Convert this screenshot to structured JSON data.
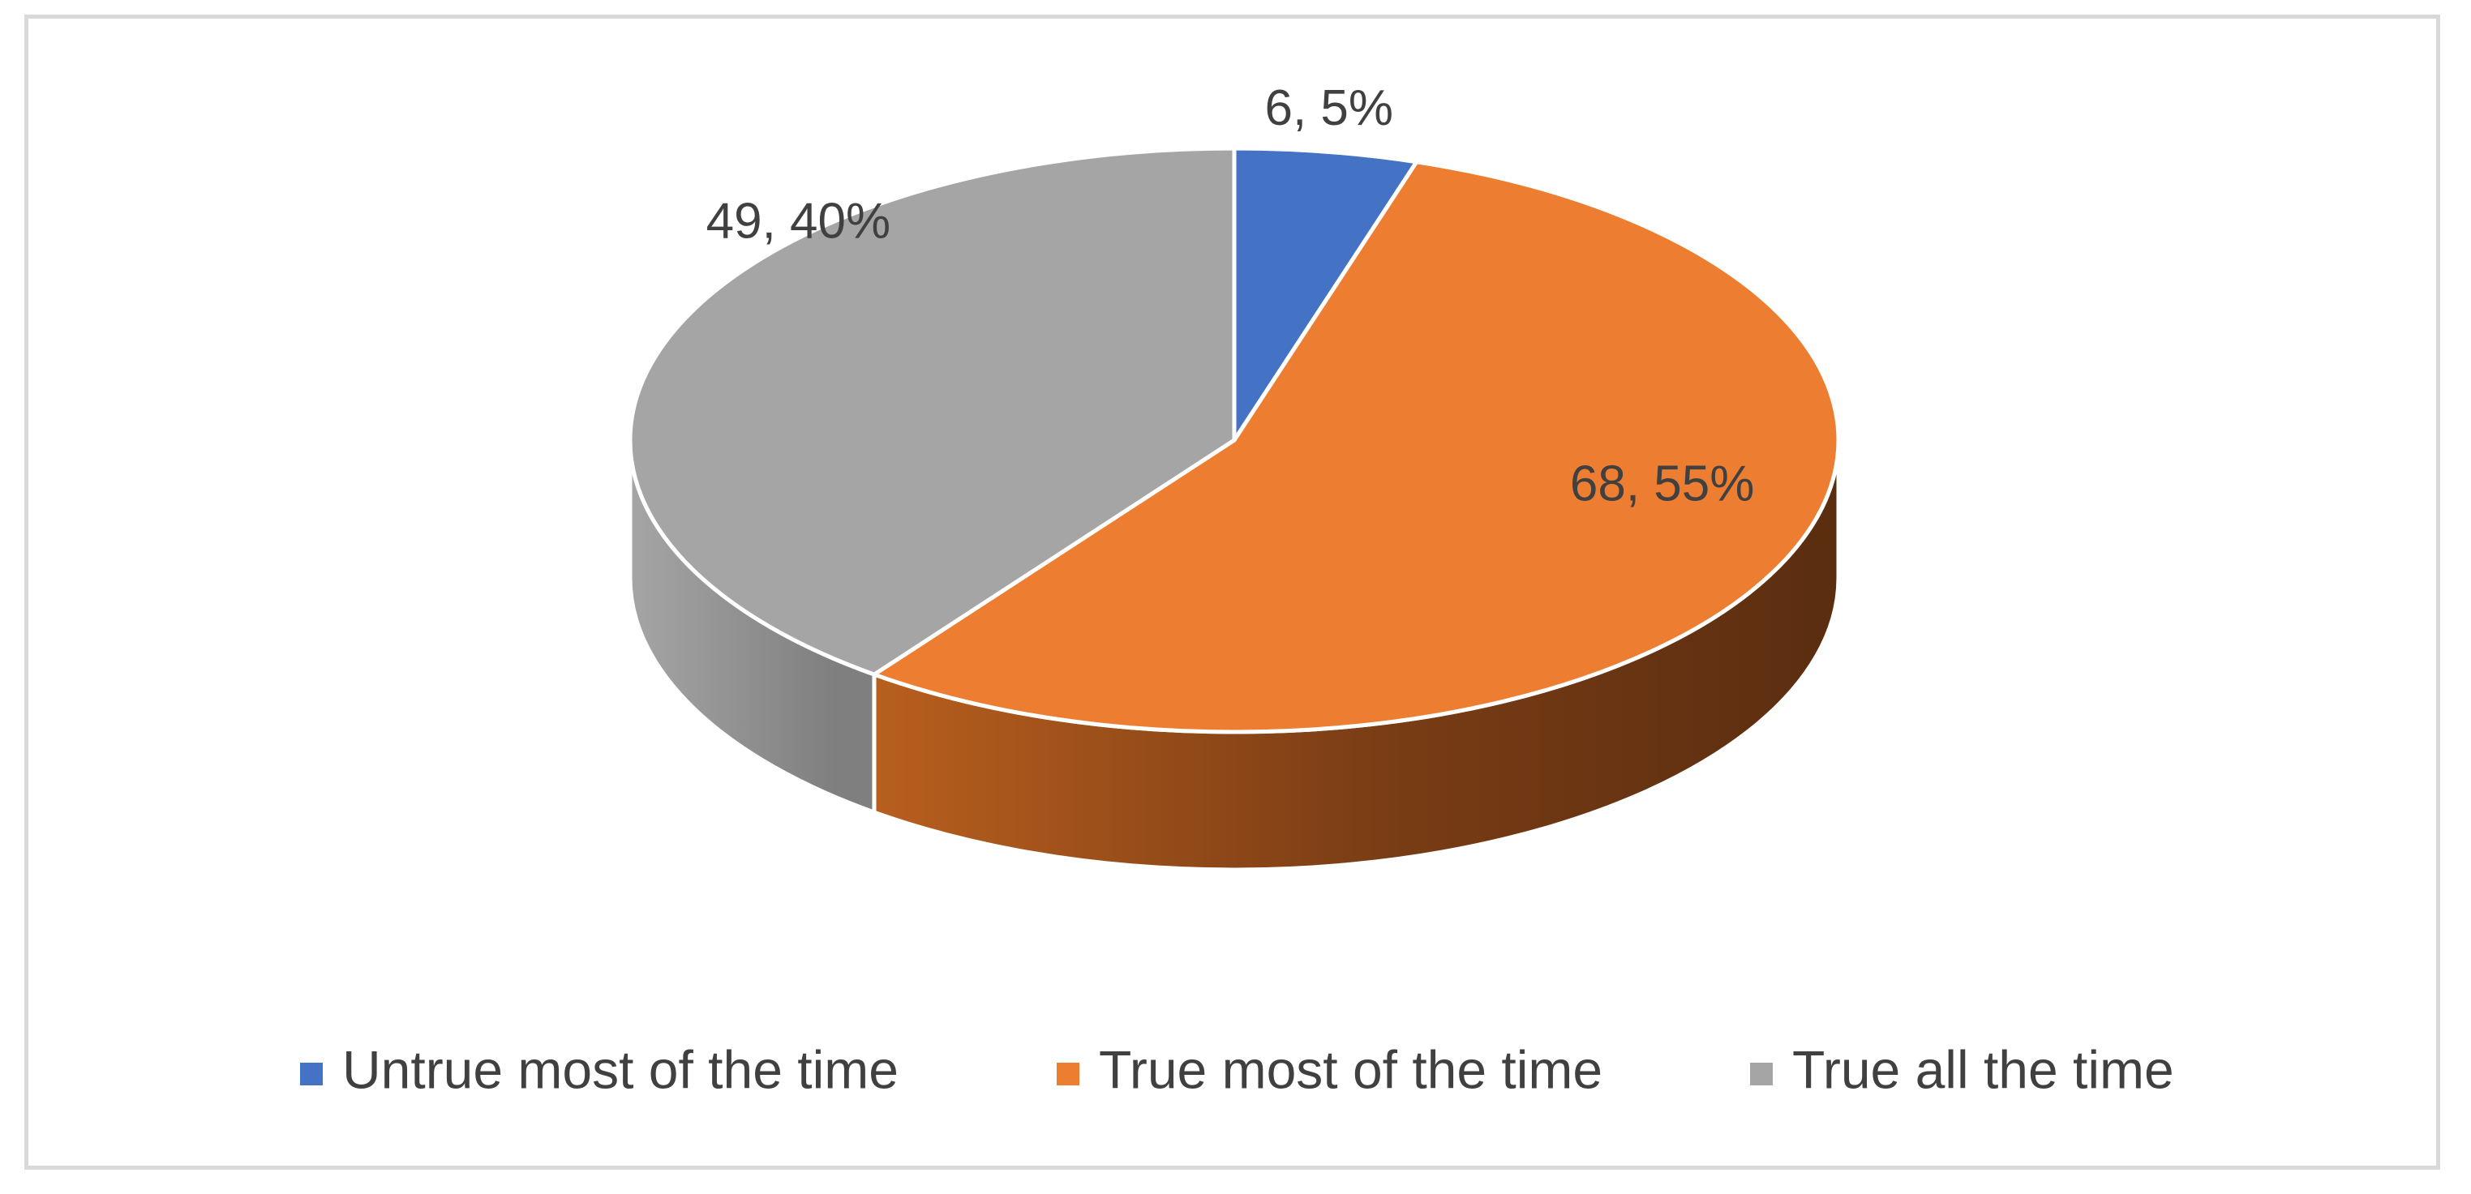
{
  "chart_data": {
    "type": "pie",
    "style": "3d",
    "title": "",
    "legend_position": "bottom",
    "series": [
      {
        "values": [
          6,
          68,
          49
        ],
        "percent_labels": [
          "5%",
          "55%",
          "40%"
        ]
      }
    ],
    "categories": [
      "Untrue most of the time",
      "True most of the time",
      "True all the time"
    ],
    "data_labels": [
      "6, 5%",
      "68, 55%",
      "49, 40%"
    ],
    "colors": [
      "#4472c4",
      "#ed7d31",
      "#a5a5a5"
    ]
  }
}
